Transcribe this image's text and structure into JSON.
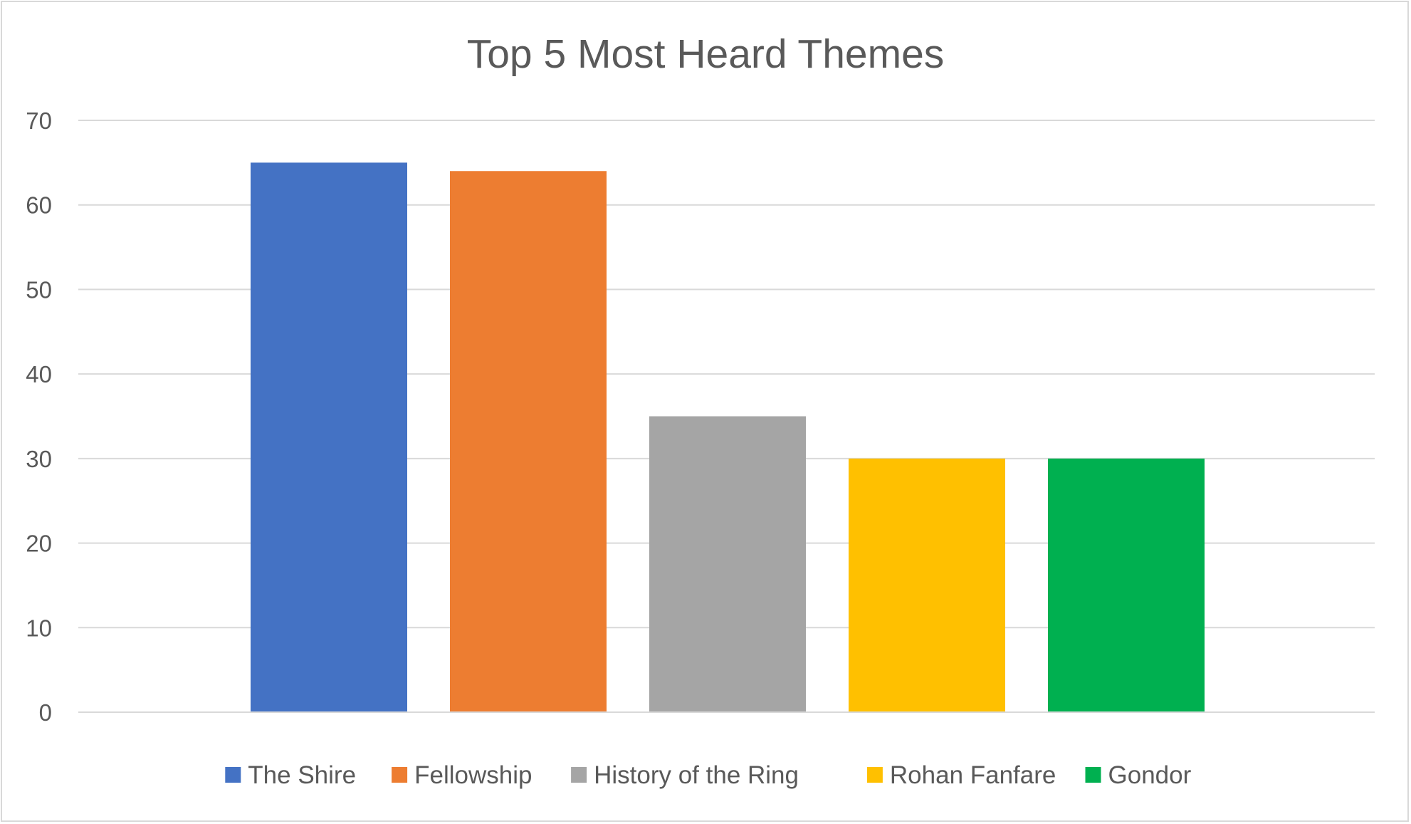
{
  "chart_data": {
    "type": "bar",
    "title": "Top 5 Most Heard Themes",
    "xlabel": "",
    "ylabel": "",
    "categories": [
      "The Shire",
      "Fellowship",
      "History of the Ring",
      "Rohan Fanfare",
      "Gondor"
    ],
    "series": [
      {
        "name": "The Shire",
        "values": [
          65,
          null,
          null,
          null,
          null
        ],
        "color": "#4472c4"
      },
      {
        "name": "Fellowship",
        "values": [
          null,
          64,
          null,
          null,
          null
        ],
        "color": "#ed7d31"
      },
      {
        "name": "History of the Ring",
        "values": [
          null,
          null,
          35,
          null,
          null
        ],
        "color": "#a5a5a5"
      },
      {
        "name": "Rohan Fanfare",
        "values": [
          null,
          null,
          null,
          30,
          null
        ],
        "color": "#ffc000"
      },
      {
        "name": "Gondor",
        "values": [
          null,
          null,
          null,
          null,
          30
        ],
        "color": "#00b050"
      }
    ],
    "ylim": [
      0,
      70
    ],
    "yticks": [
      "0",
      "10",
      "20",
      "30",
      "40",
      "50",
      "60",
      "70"
    ],
    "grid": true,
    "legend_position": "bottom"
  }
}
